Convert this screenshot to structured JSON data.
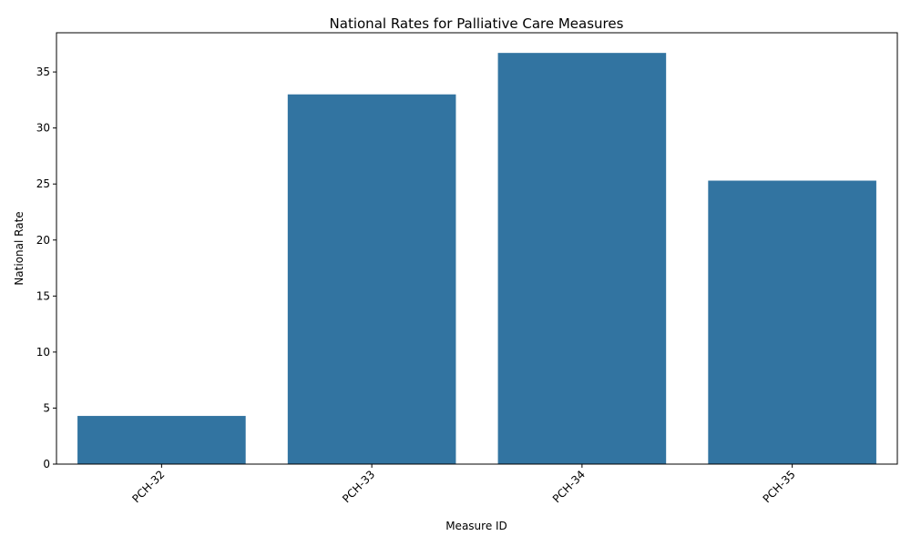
{
  "chart_data": {
    "type": "bar",
    "title": "National Rates for Palliative Care Measures",
    "xlabel": "Measure ID",
    "ylabel": "National Rate",
    "categories": [
      "PCH-32",
      "PCH-33",
      "PCH-34",
      "PCH-35"
    ],
    "values": [
      4.3,
      33.0,
      36.7,
      25.3
    ],
    "ylim": [
      0,
      38.5
    ],
    "yticks": [
      0,
      5,
      10,
      15,
      20,
      25,
      30,
      35
    ],
    "xtick_rotation": 45,
    "grid": false,
    "legend": "none",
    "bar_color": "#3274a1"
  }
}
